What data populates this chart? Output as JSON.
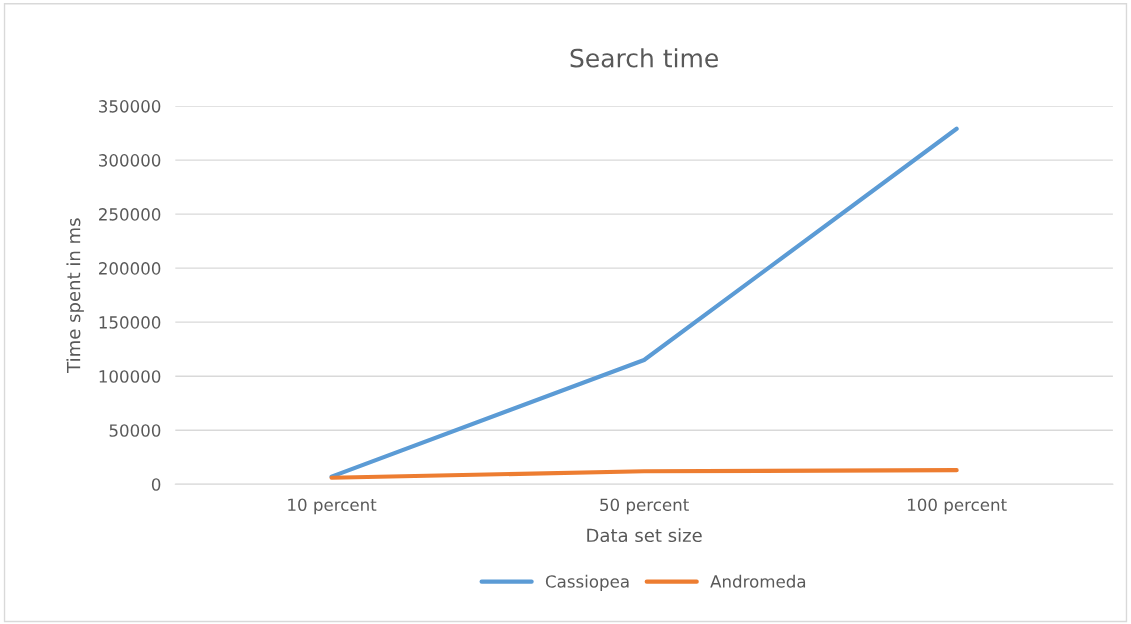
{
  "chart_data": {
    "type": "line",
    "title": "Search time",
    "xlabel": "Data set size",
    "ylabel": "Time spent in ms",
    "categories": [
      "10 percent",
      "50 percent",
      "100 percent"
    ],
    "series": [
      {
        "name": "Cassiopea",
        "color": "#5b9bd5",
        "values": [
          7000,
          115000,
          329000
        ]
      },
      {
        "name": "Andromeda",
        "color": "#ed7d31",
        "values": [
          6000,
          12000,
          13000
        ]
      }
    ],
    "ylim": [
      0,
      350000
    ],
    "yticks": [
      0,
      50000,
      100000,
      150000,
      200000,
      250000,
      300000,
      350000
    ],
    "grid": "y",
    "legend": "bottom",
    "marker": "none",
    "line_style": "solid"
  }
}
